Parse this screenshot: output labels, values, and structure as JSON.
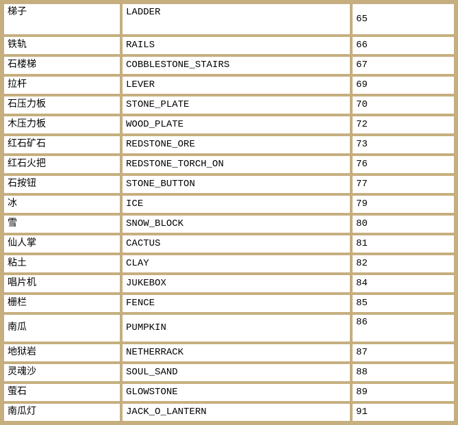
{
  "colors": {
    "grid_border": "#c6ae7f",
    "cell_background": "#ffffff",
    "text": "#000000"
  },
  "table": {
    "description": "block id reference table",
    "columns": [
      "chinese_name",
      "english_id",
      "block_id"
    ],
    "rows": [
      {
        "cn": "梯子",
        "en": "LADDER",
        "id": "65"
      },
      {
        "cn": "铁轨",
        "en": "RAILS",
        "id": "66"
      },
      {
        "cn": "石楼梯",
        "en": "COBBLESTONE_STAIRS",
        "id": "67"
      },
      {
        "cn": "拉杆",
        "en": "LEVER",
        "id": "69"
      },
      {
        "cn": "石压力板",
        "en": "STONE_PLATE",
        "id": "70"
      },
      {
        "cn": "木压力板",
        "en": "WOOD_PLATE",
        "id": "72"
      },
      {
        "cn": "红石矿石",
        "en": "REDSTONE_ORE",
        "id": "73"
      },
      {
        "cn": "红石火把",
        "en": "REDSTONE_TORCH_ON",
        "id": "76"
      },
      {
        "cn": "石按钮",
        "en": "STONE_BUTTON",
        "id": "77"
      },
      {
        "cn": "冰",
        "en": "ICE",
        "id": "79"
      },
      {
        "cn": "雪",
        "en": "SNOW_BLOCK",
        "id": "80"
      },
      {
        "cn": "仙人掌",
        "en": "CACTUS",
        "id": "81"
      },
      {
        "cn": "粘土",
        "en": "CLAY",
        "id": "82"
      },
      {
        "cn": "唱片机",
        "en": "JUKEBOX",
        "id": "84"
      },
      {
        "cn": "栅栏",
        "en": "FENCE",
        "id": "85"
      },
      {
        "cn": "南瓜",
        "en": "PUMPKIN",
        "id": "86"
      },
      {
        "cn": "地狱岩",
        "en": "NETHERRACK",
        "id": "87"
      },
      {
        "cn": "灵魂沙",
        "en": "SOUL_SAND",
        "id": "88"
      },
      {
        "cn": "萤石",
        "en": "GLOWSTONE",
        "id": "89"
      },
      {
        "cn": "南瓜灯",
        "en": "JACK_O_LANTERN",
        "id": "91"
      }
    ]
  }
}
